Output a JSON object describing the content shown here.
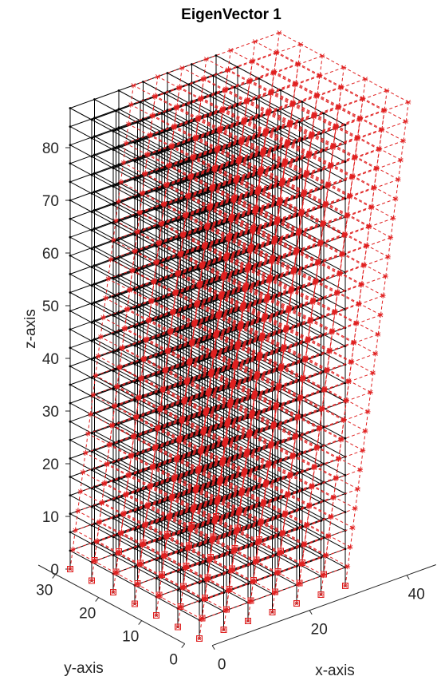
{
  "chart_data": {
    "type": "wireframe3d",
    "title": "EigenVector  1",
    "xlabel": "x-axis",
    "ylabel": "y-axis",
    "zlabel": "z-axis",
    "xticks": [
      0,
      20,
      40
    ],
    "yticks": [
      0,
      10,
      20,
      30
    ],
    "zticks": [
      0,
      10,
      20,
      30,
      40,
      50,
      60,
      70,
      80
    ],
    "xlim": [
      0,
      46
    ],
    "ylim": [
      0,
      34
    ],
    "x_nodes": [
      0,
      5,
      10,
      15,
      20,
      25,
      30
    ],
    "y_nodes": [
      0,
      5,
      10,
      15,
      20,
      25,
      30
    ],
    "z_nodes": [
      0,
      3.5,
      7,
      10.5,
      14,
      17.5,
      21,
      24.5,
      28,
      31.5,
      35,
      38.5,
      42,
      45.5,
      49,
      52.5,
      56,
      59.5,
      63,
      66.5,
      70,
      73.5,
      77,
      80.5,
      84,
      87.5
    ],
    "mode_dx_top": 13,
    "frame_color": "#000000",
    "mode_color": "#e02020"
  }
}
